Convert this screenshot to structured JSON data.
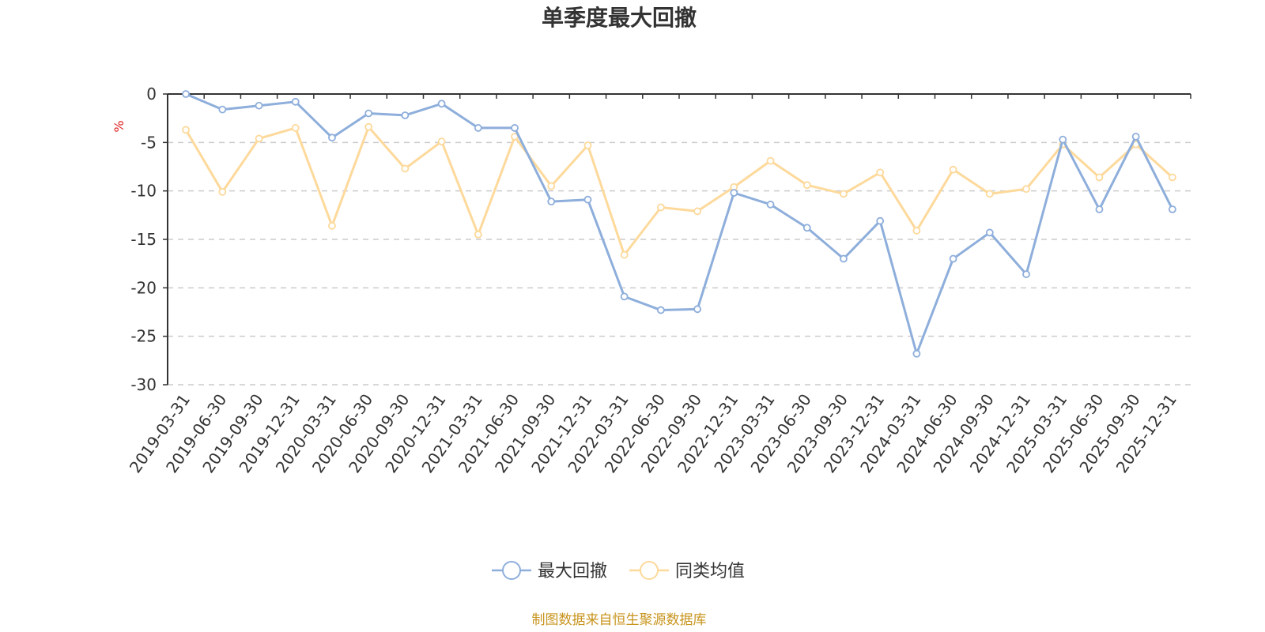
{
  "chart_data": {
    "type": "line",
    "title": "单季度最大回撤",
    "ylabel": "%",
    "ylim": [
      -30,
      0
    ],
    "yticks": [
      0,
      -5,
      -10,
      -15,
      -20,
      -25,
      -30
    ],
    "grid": true,
    "legend_position": "bottom",
    "categories": [
      "2019-03-31",
      "2019-06-30",
      "2019-09-30",
      "2019-12-31",
      "2020-03-31",
      "2020-06-30",
      "2020-09-30",
      "2020-12-31",
      "2021-03-31",
      "2021-06-30",
      "2021-09-30",
      "2021-12-31",
      "2022-03-31",
      "2022-06-30",
      "2022-09-30",
      "2022-12-31",
      "2023-03-31",
      "2023-06-30",
      "2023-09-30",
      "2023-12-31",
      "2024-03-31",
      "2024-06-30",
      "2024-09-30",
      "2024-12-31",
      "2025-03-31",
      "2025-06-30",
      "2025-09-30",
      "2025-12-31"
    ],
    "series": [
      {
        "name": "最大回撤",
        "color": "#8eaedb",
        "values": [
          0,
          -1.6,
          -1.2,
          -0.8,
          -4.5,
          -2.0,
          -2.2,
          -1.0,
          -3.5,
          -3.5,
          -11.1,
          -10.9,
          -20.9,
          -22.3,
          -22.2,
          -10.2,
          -11.4,
          -13.8,
          -17.0,
          -13.1,
          -26.8,
          -17.0,
          -14.3,
          -18.6,
          -4.7,
          -11.9,
          -4.4,
          -11.9
        ]
      },
      {
        "name": "同类均值",
        "color": "#fdd99b",
        "values": [
          -3.7,
          -10.1,
          -4.6,
          -3.5,
          -13.6,
          -3.4,
          -7.7,
          -4.9,
          -14.5,
          -4.4,
          -9.5,
          -5.3,
          -16.6,
          -11.7,
          -12.1,
          -9.6,
          -6.9,
          -9.4,
          -10.3,
          -8.1,
          -14.1,
          -7.8,
          -10.3,
          -9.8,
          -5.2,
          -8.6,
          -5.2,
          -8.6
        ]
      }
    ],
    "source_note": "制图数据来自恒生聚源数据库"
  }
}
